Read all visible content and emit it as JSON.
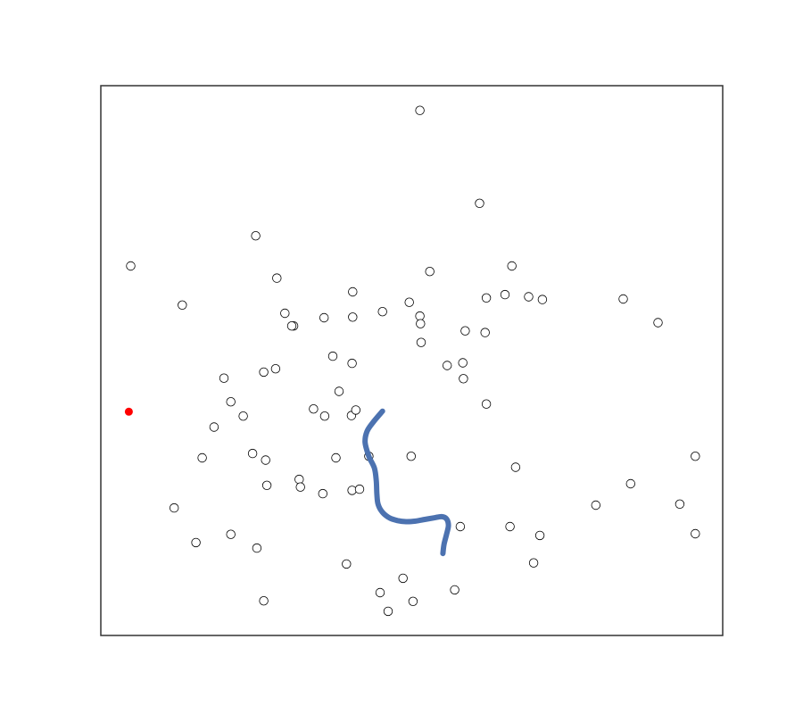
{
  "chart_data": {
    "type": "scatter",
    "title": "",
    "xlabel": "",
    "ylabel": "",
    "grid": false,
    "axes_ticks": false,
    "xlim": [
      0,
      100
    ],
    "ylim": [
      0,
      100
    ],
    "colors": {
      "point_edge": "#000000",
      "point_fill": "#ffffff",
      "highlight": "#ff0000",
      "path": "#4c72b0",
      "frame": "#333333"
    },
    "points": [
      [
        51.3,
        95.5
      ],
      [
        60.9,
        78.6
      ],
      [
        24.9,
        72.7
      ],
      [
        4.8,
        67.2
      ],
      [
        28.3,
        65.0
      ],
      [
        52.9,
        66.2
      ],
      [
        66.1,
        67.2
      ],
      [
        13.1,
        60.1
      ],
      [
        40.5,
        62.5
      ],
      [
        49.6,
        60.6
      ],
      [
        62.0,
        61.4
      ],
      [
        65.0,
        62.0
      ],
      [
        68.8,
        61.6
      ],
      [
        71.0,
        61.1
      ],
      [
        84.0,
        61.2
      ],
      [
        89.6,
        56.9
      ],
      [
        29.6,
        58.6
      ],
      [
        31.0,
        56.3
      ],
      [
        30.7,
        56.3
      ],
      [
        35.9,
        57.8
      ],
      [
        40.5,
        57.9
      ],
      [
        45.3,
        58.9
      ],
      [
        51.3,
        58.1
      ],
      [
        51.4,
        56.7
      ],
      [
        58.6,
        55.4
      ],
      [
        61.8,
        55.1
      ],
      [
        51.5,
        53.3
      ],
      [
        40.4,
        49.5
      ],
      [
        37.3,
        50.8
      ],
      [
        26.2,
        47.9
      ],
      [
        28.1,
        48.5
      ],
      [
        55.7,
        49.1
      ],
      [
        58.2,
        49.6
      ],
      [
        58.3,
        46.7
      ],
      [
        19.8,
        46.8
      ],
      [
        38.3,
        44.4
      ],
      [
        20.9,
        42.5
      ],
      [
        22.9,
        39.9
      ],
      [
        34.2,
        41.2
      ],
      [
        36.0,
        39.9
      ],
      [
        40.3,
        40.0
      ],
      [
        41.0,
        41.0
      ],
      [
        62.0,
        42.1
      ],
      [
        18.2,
        37.9
      ],
      [
        16.3,
        32.3
      ],
      [
        24.4,
        33.1
      ],
      [
        26.5,
        31.9
      ],
      [
        37.8,
        32.3
      ],
      [
        43.1,
        32.6
      ],
      [
        49.9,
        32.6
      ],
      [
        66.7,
        30.6
      ],
      [
        95.6,
        32.6
      ],
      [
        31.9,
        28.4
      ],
      [
        32.1,
        27.0
      ],
      [
        26.7,
        27.3
      ],
      [
        35.7,
        25.8
      ],
      [
        40.4,
        26.4
      ],
      [
        41.6,
        26.6
      ],
      [
        85.2,
        27.6
      ],
      [
        79.6,
        23.7
      ],
      [
        93.1,
        23.9
      ],
      [
        11.8,
        23.2
      ],
      [
        15.3,
        16.9
      ],
      [
        20.9,
        18.4
      ],
      [
        25.1,
        15.9
      ],
      [
        57.8,
        19.8
      ],
      [
        65.8,
        19.8
      ],
      [
        70.6,
        18.2
      ],
      [
        95.6,
        18.5
      ],
      [
        39.5,
        13.0
      ],
      [
        69.6,
        13.2
      ],
      [
        48.6,
        10.4
      ],
      [
        44.9,
        7.8
      ],
      [
        56.9,
        8.3
      ],
      [
        26.2,
        6.3
      ],
      [
        50.2,
        6.2
      ],
      [
        46.2,
        4.4
      ]
    ],
    "highlight_point": [
      4.5,
      40.7
    ],
    "path": [
      [
        45.3,
        40.8
      ],
      [
        43.8,
        38.8
      ],
      [
        42.8,
        37.1
      ],
      [
        42.5,
        35.1
      ],
      [
        43.1,
        32.6
      ],
      [
        44.0,
        30.4
      ],
      [
        44.3,
        28.0
      ],
      [
        44.4,
        25.5
      ],
      [
        44.6,
        23.8
      ],
      [
        45.3,
        22.4
      ],
      [
        46.4,
        21.4
      ],
      [
        47.7,
        20.9
      ],
      [
        49.1,
        20.7
      ],
      [
        50.6,
        20.8
      ],
      [
        52.1,
        21.1
      ],
      [
        53.6,
        21.4
      ],
      [
        54.8,
        21.6
      ],
      [
        55.6,
        21.2
      ],
      [
        55.9,
        20.0
      ],
      [
        55.6,
        18.4
      ],
      [
        55.2,
        16.6
      ],
      [
        55.0,
        14.9
      ]
    ]
  }
}
